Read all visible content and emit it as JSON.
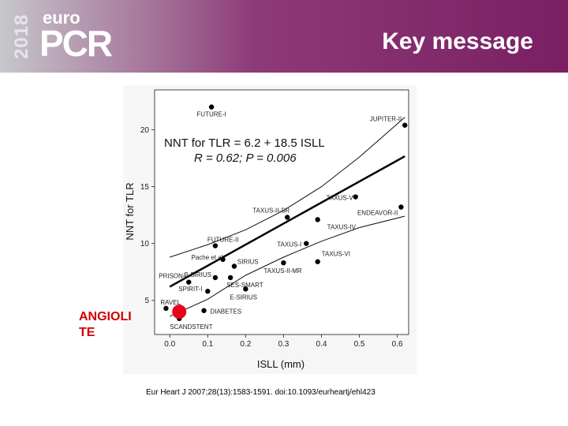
{
  "header": {
    "logo_year": "2018",
    "logo_euro": "euro",
    "logo_pcr": "PCR",
    "title": "Key message"
  },
  "callout": {
    "line1": "ANGIOLI",
    "line2": "TE"
  },
  "reference": "Eur Heart J 2007;28(13):1583-1591.  doi:10.1093/eurheartj/ehl423",
  "colors": {
    "highlight": "#e8001c",
    "callout_text": "#d10000"
  },
  "chart_data": {
    "type": "scatter",
    "xlabel": "ISLL (mm)",
    "ylabel": "NNT for TLR",
    "xlim": [
      -0.04,
      0.63
    ],
    "ylim": [
      2.0,
      23.5
    ],
    "xticks": [
      "0.0",
      "0.1",
      "0.2",
      "0.3",
      "0.4",
      "0.5",
      "0.6"
    ],
    "yticks": [
      "5",
      "10",
      "15",
      "20"
    ],
    "equation": "NNT for TLR = 6.2 + 18.5 ISLL",
    "stats": "R = 0.62; P = 0.006",
    "regression": {
      "intercept": 6.2,
      "slope": 18.5
    },
    "ci_upper": [
      [
        0.0,
        8.8
      ],
      [
        0.1,
        9.9
      ],
      [
        0.2,
        11.2
      ],
      [
        0.3,
        12.9
      ],
      [
        0.4,
        15.0
      ],
      [
        0.5,
        17.6
      ],
      [
        0.62,
        21.1
      ]
    ],
    "ci_lower": [
      [
        0.0,
        3.6
      ],
      [
        0.1,
        5.1
      ],
      [
        0.2,
        7.2
      ],
      [
        0.3,
        8.8
      ],
      [
        0.4,
        10.2
      ],
      [
        0.5,
        11.4
      ],
      [
        0.62,
        12.4
      ]
    ],
    "points": [
      {
        "label": "FUTURE-I",
        "x": 0.11,
        "y": 22.0
      },
      {
        "label": "JUPITER-II",
        "x": 0.62,
        "y": 20.4
      },
      {
        "label": "TAXUS-V",
        "x": 0.49,
        "y": 14.1
      },
      {
        "label": "ENDEAVOR-II",
        "x": 0.61,
        "y": 13.2
      },
      {
        "label": "TAXUS-II-SR",
        "x": 0.31,
        "y": 12.3
      },
      {
        "label": "TAXUS-IV",
        "x": 0.39,
        "y": 12.1
      },
      {
        "label": "FUTURE-II",
        "x": 0.12,
        "y": 9.8
      },
      {
        "label": "TAXUS-I",
        "x": 0.36,
        "y": 10.0
      },
      {
        "label": "TAXUS-VI",
        "x": 0.39,
        "y": 8.4
      },
      {
        "label": "Pache et al",
        "x": 0.14,
        "y": 8.6
      },
      {
        "label": "C-SIRIUS",
        "x": 0.12,
        "y": 7.0
      },
      {
        "label": "SIRIUS",
        "x": 0.17,
        "y": 8.0
      },
      {
        "label": "TAXUS-II-MR",
        "x": 0.3,
        "y": 8.3
      },
      {
        "label": "PRISON-II",
        "x": 0.05,
        "y": 6.6
      },
      {
        "label": "SES-SMART",
        "x": 0.16,
        "y": 7.0
      },
      {
        "label": "SPIRIT-I",
        "x": 0.1,
        "y": 5.8
      },
      {
        "label": "E-SIRIUS",
        "x": 0.2,
        "y": 6.0
      },
      {
        "label": "RAVEL",
        "x": -0.01,
        "y": 4.3
      },
      {
        "label": "DIABETES",
        "x": 0.09,
        "y": 4.1
      },
      {
        "label": "SCANDSTENT",
        "x": 0.025,
        "y": 3.4
      }
    ],
    "highlight": {
      "label": "ANGIOLITE",
      "x": 0.025,
      "y": 4.0
    }
  }
}
